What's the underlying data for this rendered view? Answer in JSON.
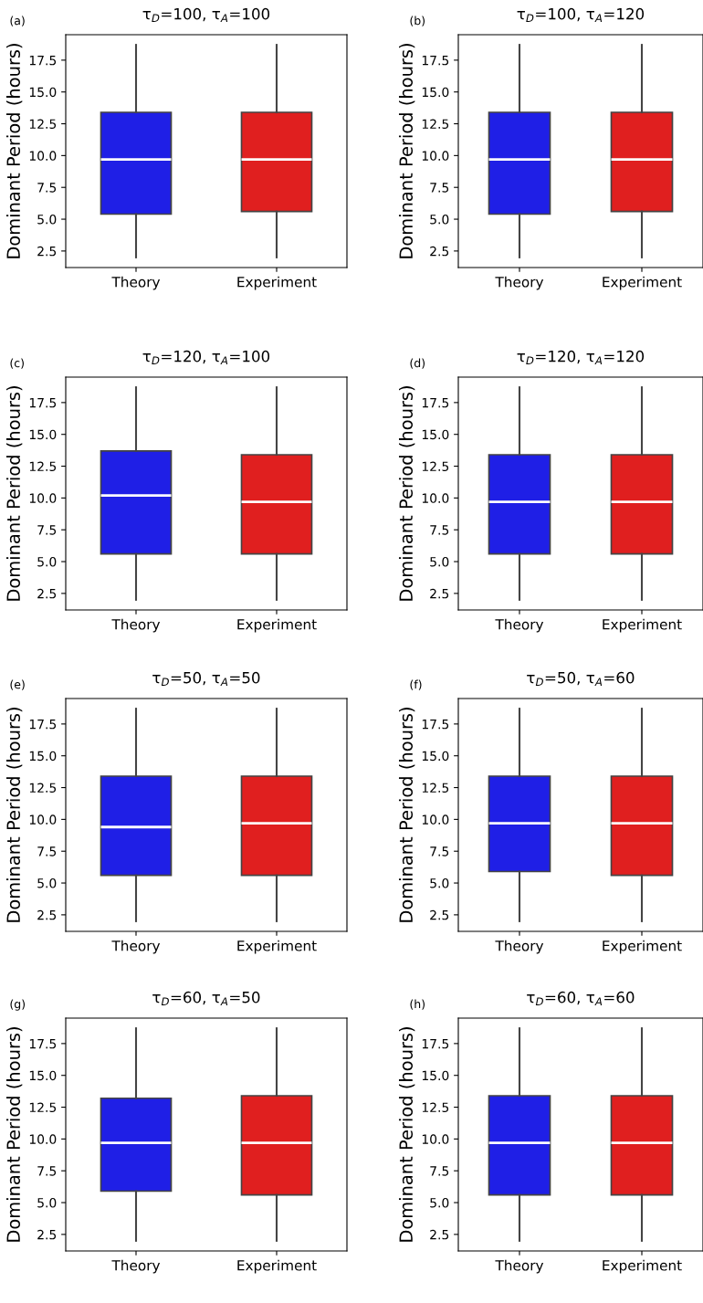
{
  "chart_data": [
    {
      "type": "box",
      "title": "τ$_{D}$=100, τ$_{A}$=100",
      "annotations": [
        "(a)"
      ],
      "ylabel": "Dominant Period (hours)",
      "categories": [
        "Theory",
        "Experiment"
      ],
      "colors": [
        "#1f1fe6",
        "#e01f1f"
      ],
      "ylim": [
        1.2,
        19.5
      ],
      "yticks": [
        2.5,
        {
          "value": 5,
          "label": "5.0"
        },
        7.5,
        {
          "value": 10,
          "label": "10.0"
        },
        12.5,
        {
          "value": 15,
          "label": "15.0"
        },
        17.5
      ],
      "boxes": [
        {
          "low": 2.0,
          "q1": 5.4,
          "median": 9.7,
          "q3": 13.4,
          "high": 18.7
        },
        {
          "low": 2.0,
          "q1": 5.6,
          "median": 9.7,
          "q3": 13.4,
          "high": 18.7
        }
      ]
    },
    {
      "type": "box",
      "title": "τ$_{D}$=100, τ$_{A}$=120",
      "annotations": [
        "(b)"
      ],
      "ylabel": "Dominant Period (hours)",
      "categories": [
        "Theory",
        "Experiment"
      ],
      "colors": [
        "#1f1fe6",
        "#e01f1f"
      ],
      "ylim": [
        1.2,
        19.5
      ],
      "yticks": [
        2.5,
        {
          "value": 5,
          "label": "5.0"
        },
        7.5,
        {
          "value": 10,
          "label": "10.0"
        },
        12.5,
        {
          "value": 15,
          "label": "15.0"
        },
        17.5
      ],
      "boxes": [
        {
          "low": 2.0,
          "q1": 5.4,
          "median": 9.7,
          "q3": 13.4,
          "high": 18.7
        },
        {
          "low": 2.0,
          "q1": 5.6,
          "median": 9.7,
          "q3": 13.4,
          "high": 18.7
        }
      ]
    },
    {
      "type": "box",
      "title": "τ$_{D}$=120, τ$_{A}$=100",
      "annotations": [
        "(c)"
      ],
      "ylabel": "Dominant Period (hours)",
      "categories": [
        "Theory",
        "Experiment"
      ],
      "colors": [
        "#1f1fe6",
        "#e01f1f"
      ],
      "ylim": [
        1.2,
        19.5
      ],
      "yticks": [
        2.5,
        {
          "value": 5,
          "label": "5.0"
        },
        7.5,
        {
          "value": 10,
          "label": "10.0"
        },
        12.5,
        {
          "value": 15,
          "label": "15.0"
        },
        17.5
      ],
      "boxes": [
        {
          "low": 2.0,
          "q1": 5.6,
          "median": 10.2,
          "q3": 13.7,
          "high": 18.7
        },
        {
          "low": 2.0,
          "q1": 5.6,
          "median": 9.7,
          "q3": 13.4,
          "high": 18.7
        }
      ]
    },
    {
      "type": "box",
      "title": "τ$_{D}$=120, τ$_{A}$=120",
      "annotations": [
        "(d)"
      ],
      "ylabel": "Dominant Period (hours)",
      "categories": [
        "Theory",
        "Experiment"
      ],
      "colors": [
        "#1f1fe6",
        "#e01f1f"
      ],
      "ylim": [
        1.2,
        19.5
      ],
      "yticks": [
        2.5,
        {
          "value": 5,
          "label": "5.0"
        },
        7.5,
        {
          "value": 10,
          "label": "10.0"
        },
        12.5,
        {
          "value": 15,
          "label": "15.0"
        },
        17.5
      ],
      "boxes": [
        {
          "low": 2.0,
          "q1": 5.6,
          "median": 9.7,
          "q3": 13.4,
          "high": 18.7
        },
        {
          "low": 2.0,
          "q1": 5.6,
          "median": 9.7,
          "q3": 13.4,
          "high": 18.7
        }
      ]
    },
    {
      "type": "box",
      "title": "τ$_{D}$=50, τ$_{A}$=50",
      "annotations": [
        "(e)"
      ],
      "ylabel": "Dominant Period (hours)",
      "categories": [
        "Theory",
        "Experiment"
      ],
      "colors": [
        "#1f1fe6",
        "#e01f1f"
      ],
      "ylim": [
        1.2,
        19.5
      ],
      "yticks": [
        2.5,
        {
          "value": 5,
          "label": "5.0"
        },
        7.5,
        {
          "value": 10,
          "label": "10.0"
        },
        12.5,
        {
          "value": 15,
          "label": "15.0"
        },
        17.5
      ],
      "boxes": [
        {
          "low": 2.0,
          "q1": 5.6,
          "median": 9.4,
          "q3": 13.4,
          "high": 18.7
        },
        {
          "low": 2.0,
          "q1": 5.6,
          "median": 9.7,
          "q3": 13.4,
          "high": 18.7
        }
      ]
    },
    {
      "type": "box",
      "title": "τ$_{D}$=50, τ$_{A}$=60",
      "annotations": [
        "(f)"
      ],
      "ylabel": "Dominant Period (hours)",
      "categories": [
        "Theory",
        "Experiment"
      ],
      "colors": [
        "#1f1fe6",
        "#e01f1f"
      ],
      "ylim": [
        1.2,
        19.5
      ],
      "yticks": [
        2.5,
        {
          "value": 5,
          "label": "5.0"
        },
        7.5,
        {
          "value": 10,
          "label": "10.0"
        },
        12.5,
        {
          "value": 15,
          "label": "15.0"
        },
        17.5
      ],
      "boxes": [
        {
          "low": 2.0,
          "q1": 5.9,
          "median": 9.7,
          "q3": 13.4,
          "high": 18.7
        },
        {
          "low": 2.0,
          "q1": 5.6,
          "median": 9.7,
          "q3": 13.4,
          "high": 18.7
        }
      ]
    },
    {
      "type": "box",
      "title": "τ$_{D}$=60, τ$_{A}$=50",
      "annotations": [
        "(g)"
      ],
      "ylabel": "Dominant Period (hours)",
      "categories": [
        "Theory",
        "Experiment"
      ],
      "colors": [
        "#1f1fe6",
        "#e01f1f"
      ],
      "ylim": [
        1.2,
        19.5
      ],
      "yticks": [
        2.5,
        {
          "value": 5,
          "label": "5.0"
        },
        7.5,
        {
          "value": 10,
          "label": "10.0"
        },
        12.5,
        {
          "value": 15,
          "label": "15.0"
        },
        17.5
      ],
      "boxes": [
        {
          "low": 2.0,
          "q1": 5.9,
          "median": 9.7,
          "q3": 13.2,
          "high": 18.7
        },
        {
          "low": 2.0,
          "q1": 5.6,
          "median": 9.7,
          "q3": 13.4,
          "high": 18.7
        }
      ]
    },
    {
      "type": "box",
      "title": "τ$_{D}$=60, τ$_{A}$=60",
      "annotations": [
        "(h)"
      ],
      "ylabel": "Dominant Period (hours)",
      "categories": [
        "Theory",
        "Experiment"
      ],
      "colors": [
        "#1f1fe6",
        "#e01f1f"
      ],
      "ylim": [
        1.2,
        19.5
      ],
      "yticks": [
        2.5,
        {
          "value": 5,
          "label": "5.0"
        },
        7.5,
        {
          "value": 10,
          "label": "10.0"
        },
        12.5,
        {
          "value": 15,
          "label": "15.0"
        },
        17.5
      ],
      "boxes": [
        {
          "low": 2.0,
          "q1": 5.6,
          "median": 9.7,
          "q3": 13.4,
          "high": 18.7
        },
        {
          "low": 2.0,
          "q1": 5.6,
          "median": 9.7,
          "q3": 13.4,
          "high": 18.7
        }
      ]
    }
  ]
}
